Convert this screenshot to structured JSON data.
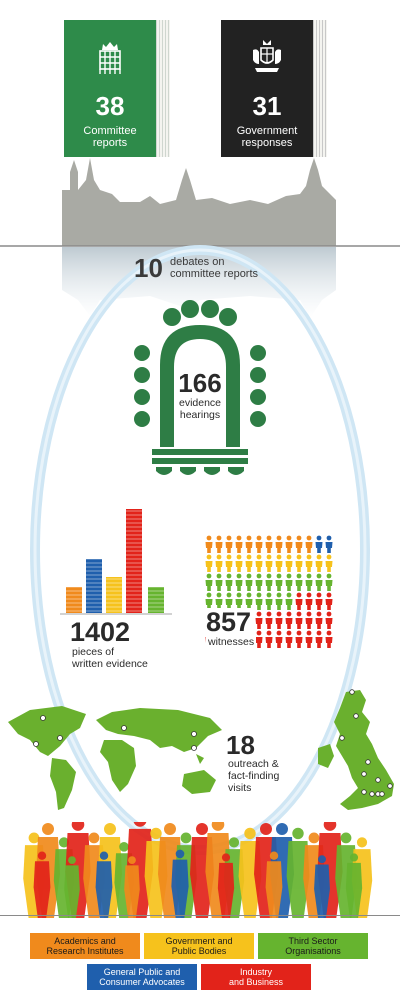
{
  "reports": {
    "count": "38",
    "label_line1": "Committee",
    "label_line2": "reports",
    "color": "#2e8b4a"
  },
  "responses": {
    "count": "31",
    "label_line1": "Government",
    "label_line2": "responses",
    "color": "#222222"
  },
  "debates": {
    "count": "10",
    "label_line1": "debates on",
    "label_line2": "committee reports"
  },
  "hearings": {
    "count": "166",
    "label_line1": "evidence",
    "label_line2": "hearings",
    "color": "#2e7d45"
  },
  "written_evidence": {
    "count": "1402",
    "label_line1": "pieces of",
    "label_line2": "written evidence"
  },
  "witnesses": {
    "count": "857",
    "label": "witnesses"
  },
  "visits": {
    "count": "18",
    "label_line1": "outreach &",
    "label_line2": "fact-finding",
    "label_line3": "visits",
    "color": "#6ab02e"
  },
  "legend": [
    {
      "line1": "Academics and",
      "line2": "Research Institutes",
      "color": "#f08a1c"
    },
    {
      "line1": "Government and",
      "line2": "Public Bodies",
      "color": "#f6c21c"
    },
    {
      "line1": "Third Sector",
      "line2": "Organisations",
      "color": "#66b42f"
    },
    {
      "line1": "General Public and",
      "line2": "Consumer Advocates",
      "color": "#1f5fad"
    },
    {
      "line1": "Industry",
      "line2": "and Business",
      "color": "#e2231a"
    }
  ]
}
